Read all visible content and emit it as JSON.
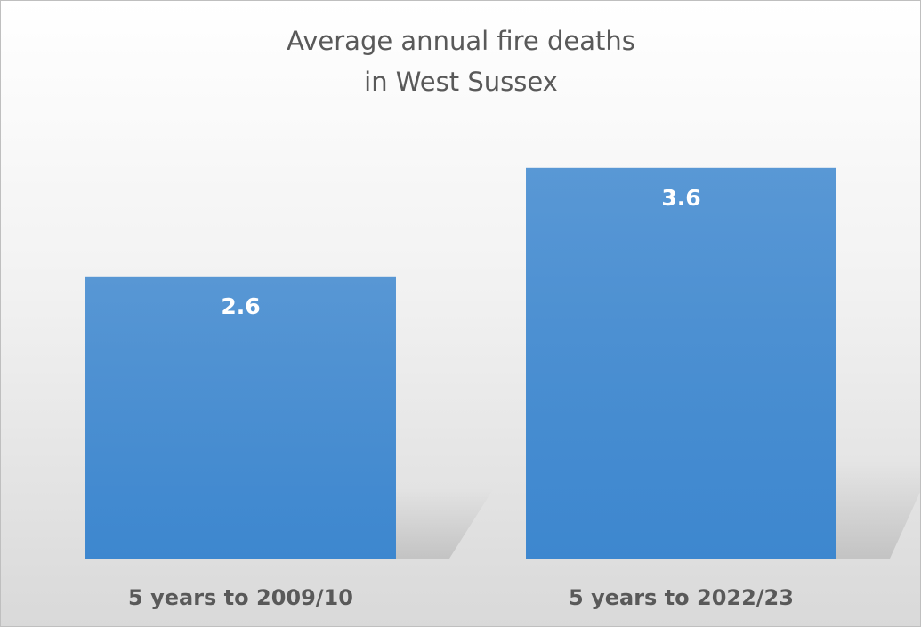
{
  "chart_data": {
    "type": "bar",
    "title": "Average annual fire deaths in West Sussex",
    "categories": [
      "5 years to 2009/10",
      "5 years to 2022/23"
    ],
    "values": [
      2.6,
      3.6
    ],
    "color": "#3d87cf",
    "ylim": [
      0,
      4
    ]
  }
}
